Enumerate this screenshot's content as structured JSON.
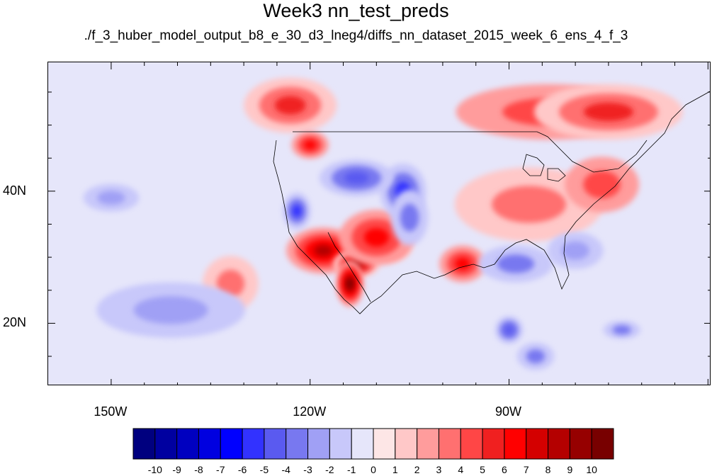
{
  "title": "Week3 nn_test_preds",
  "subtitle": "./f_3_huber_model_output_b8_e_30_d3_lneg4/diffs_nn_dataset_2015_week_6_ens_4_f_3",
  "lat_labels": [
    {
      "text": "40N",
      "lat": 40
    },
    {
      "text": "20N",
      "lat": 20
    }
  ],
  "lon_labels": [
    {
      "text": "150W",
      "lon": -150
    },
    {
      "text": "120W",
      "lon": -120
    },
    {
      "text": "90W",
      "lon": -90
    }
  ],
  "map_extent": {
    "lon_min": -159.5,
    "lon_max": -59.5,
    "lat_min": 10.5,
    "lat_max": 59.5
  },
  "colorbar": {
    "levels": [
      "-10",
      "-9",
      "-8",
      "-7",
      "-6",
      "-5",
      "-4",
      "-3",
      "-2",
      "-1",
      "0",
      "1",
      "2",
      "3",
      "4",
      "5",
      "6",
      "7",
      "8",
      "9",
      "10"
    ],
    "colors": [
      "#00007f",
      "#0000a0",
      "#0000c0",
      "#0000e0",
      "#0000ff",
      "#3232ff",
      "#5a5af0",
      "#7878f0",
      "#a0a0f5",
      "#c8c8fa",
      "#e6e6fa",
      "#fde6e6",
      "#ffc8c8",
      "#ff9c9c",
      "#ff7070",
      "#ff4646",
      "#f02020",
      "#ff0000",
      "#d40000",
      "#b40000",
      "#960000",
      "#780000"
    ]
  },
  "chart_data": {
    "type": "heatmap",
    "title": "Week3 nn_test_preds",
    "subtitle": "./f_3_huber_model_output_b8_e_30_d3_lneg4/diffs_nn_dataset_2015_week_6_ens_4_f_3",
    "x_ticks": [
      "150W",
      "120W",
      "90W"
    ],
    "y_ticks": [
      "40N",
      "20N"
    ],
    "color_levels": [
      -10,
      -9,
      -8,
      -7,
      -6,
      -5,
      -4,
      -3,
      -2,
      -1,
      0,
      1,
      2,
      3,
      4,
      5,
      6,
      7,
      8,
      9,
      10
    ],
    "background_value": -0.5,
    "anomalies": [
      {
        "lon": -118,
        "lat": 31,
        "value": 8,
        "rx": 4,
        "ry": 2.5
      },
      {
        "lon": -113,
        "lat": 29,
        "value": 9,
        "rx": 2.5,
        "ry": 1.5
      },
      {
        "lon": -114,
        "lat": 26,
        "value": 10,
        "rx": 1.5,
        "ry": 2.5
      },
      {
        "lon": -108,
        "lat": 32,
        "value": 7,
        "rx": 2.5,
        "ry": 2
      },
      {
        "lon": -110,
        "lat": 33,
        "value": 6,
        "rx": 4,
        "ry": 3
      },
      {
        "lon": -123,
        "lat": 53,
        "value": 5,
        "rx": 5,
        "ry": 3
      },
      {
        "lon": -120,
        "lat": 47,
        "value": 6,
        "rx": 2,
        "ry": 1.5
      },
      {
        "lon": -97,
        "lat": 29,
        "value": 6,
        "rx": 2.5,
        "ry": 2
      },
      {
        "lon": -84,
        "lat": 52,
        "value": 4,
        "rx": 10,
        "ry": 3
      },
      {
        "lon": -75,
        "lat": 52,
        "value": 5,
        "rx": 8,
        "ry": 3
      },
      {
        "lon": -87,
        "lat": 38,
        "value": 3,
        "rx": 8,
        "ry": 4
      },
      {
        "lon": -76,
        "lat": 41,
        "value": 4,
        "rx": 4,
        "ry": 3
      },
      {
        "lon": -132,
        "lat": 26,
        "value": 3,
        "rx": 3,
        "ry": 3
      },
      {
        "lon": -106,
        "lat": 40,
        "value": -6,
        "rx": 2.5,
        "ry": 3
      },
      {
        "lon": -113,
        "lat": 42,
        "value": -5,
        "rx": 4,
        "ry": 2
      },
      {
        "lon": -122,
        "lat": 37,
        "value": -6,
        "rx": 1.5,
        "ry": 2
      },
      {
        "lon": -105,
        "lat": 36,
        "value": -4,
        "rx": 2,
        "ry": 3
      },
      {
        "lon": -89,
        "lat": 29,
        "value": -4,
        "rx": 4,
        "ry": 2
      },
      {
        "lon": -80,
        "lat": 31,
        "value": -3,
        "rx": 3,
        "ry": 2
      },
      {
        "lon": -141,
        "lat": 22,
        "value": -3,
        "rx": 8,
        "ry": 3
      },
      {
        "lon": -150,
        "lat": 39,
        "value": -3,
        "rx": 3,
        "ry": 1.5
      },
      {
        "lon": -90,
        "lat": 19,
        "value": -5,
        "rx": 1.5,
        "ry": 1.5
      },
      {
        "lon": -86,
        "lat": 15,
        "value": -4,
        "rx": 2,
        "ry": 1.5
      },
      {
        "lon": -73,
        "lat": 19,
        "value": -4,
        "rx": 2,
        "ry": 1
      }
    ]
  }
}
